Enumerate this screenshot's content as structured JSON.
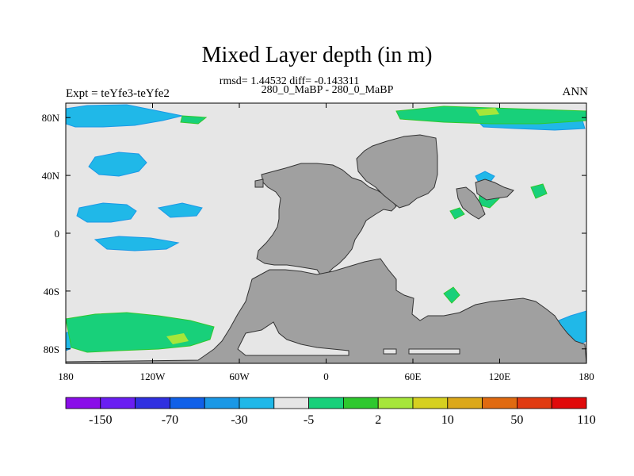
{
  "title": "Mixed Layer depth (in m)",
  "subtitle_stats": "rmsd= 1.44532 diff= -0.143311",
  "subtitle_periods": "280_0_MaBP - 280_0_MaBP",
  "left_label": "Expt = teYfe3-teYfe2",
  "right_label": "ANN",
  "chart_data": {
    "type": "heatmap",
    "title": "Mixed Layer depth (in m)",
    "x_ticks": [
      "180",
      "120W",
      "60W",
      "0",
      "60E",
      "120E",
      "180"
    ],
    "x_tick_values": [
      -180,
      -120,
      -60,
      0,
      60,
      120,
      180
    ],
    "y_ticks": [
      "80N",
      "40N",
      "0",
      "40S",
      "80S"
    ],
    "y_tick_values": [
      80,
      40,
      0,
      -40,
      -80
    ],
    "xlim": [
      -180,
      180
    ],
    "ylim": [
      -90,
      90
    ],
    "colorbar": {
      "labels": [
        "-150",
        "-70",
        "-30",
        "-5",
        "2",
        "10",
        "50",
        "110"
      ],
      "colors": [
        "#8a0ee8",
        "#6a1ef2",
        "#3030e0",
        "#1060e8",
        "#1a98e6",
        "#20b8e8",
        "#e6e6e6",
        "#18d07a",
        "#2ec82e",
        "#a6e63a",
        "#d6d020",
        "#dca81a",
        "#e06a10",
        "#e03a10",
        "#e00a0a"
      ]
    },
    "background_color": "#e6e6e6",
    "land_color": "#a0a0a0"
  }
}
